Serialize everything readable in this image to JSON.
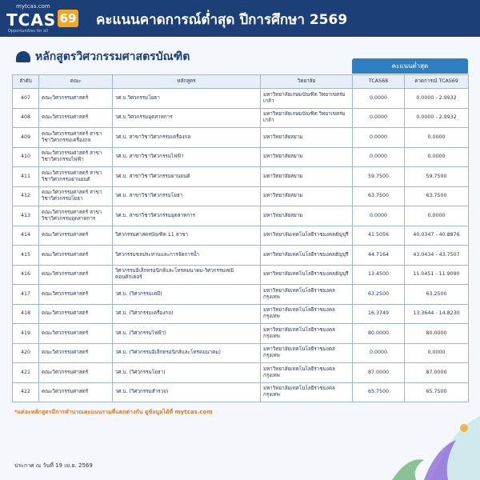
{
  "header": {
    "logo_site": "mytcas.com",
    "logo_text": "TCAS",
    "logo_number": "69",
    "logo_tagline": "Opportunities for all",
    "title": "คะแนนคาดการณ์ต่ำสุด ปีการศึกษา 2569"
  },
  "section_title": "หลักสูตรวิศวกรรมศาสตรบัณฑิต",
  "table": {
    "group_header": "คะแนนต่ำสุด",
    "columns": [
      "ลำดับ",
      "คณะ",
      "หลักสูตร",
      "วิทยาลัย",
      "TCAS68",
      "คาดการณ์ TCAS69"
    ],
    "rows": [
      [
        407,
        "คณะวิศวกรรมศาสตร์",
        "วศ.บ.วิศวกรรมโยธา",
        "มหาวิทยาลัยเกษมบัณฑิต วิทยาเขตร่มเกล้า",
        "0.0000",
        "0.0000 - 2.9932"
      ],
      [
        408,
        "คณะวิศวกรรมศาสตร์",
        "วศ.บ.วิศวกรรมอุตสาหการ",
        "มหาวิทยาลัยเกษมบัณฑิต วิทยาเขตร่มเกล้า",
        "0.0000",
        "0.0000 - 2.9932"
      ],
      [
        409,
        "คณะวิศวกรรมศาสตร์ สาขาวิชาวิศวกรรมเครื่องกล",
        "วศ.บ. สาขาวิชาวิศวกรรมเครื่องกล",
        "มหาวิทยาลัยสยาม",
        "0.0000",
        "0.0000"
      ],
      [
        410,
        "คณะวิศวกรรมศาสตร์ สาขาวิชาวิศวกรรมไฟฟ้า",
        "วศ.บ. สาขาวิชาวิศวกรรมไฟฟ้า",
        "มหาวิทยาลัยสยาม",
        "0.0000",
        "0.0000"
      ],
      [
        411,
        "คณะวิศวกรรมศาสตร์ สาขาวิชาวิศวกรรมยานยนต์",
        "วศ.บ. สาขาวิชาวิศวกรรมยานยนต์",
        "มหาวิทยาลัยสยาม",
        "59.7500",
        "59.7500"
      ],
      [
        412,
        "คณะวิศวกรรมศาสตร์ สาขาวิชาวิศวกรรมโยธา",
        "วศ.บ. สาขาวิชาวิศวกรรมโยธา",
        "มหาวิทยาลัยสยาม",
        "63.7500",
        "63.7500"
      ],
      [
        413,
        "คณะวิศวกรรมศาสตร์ สาขาวิชาวิศวกรรมอุตสาหการ",
        "วศ.บ. สาขาวิชาวิศวกรรมอุตสาหการ",
        "มหาวิทยาลัยสยาม",
        "0.0000",
        "0.0000"
      ],
      [
        414,
        "คณะวิศวกรรมศาสตร์",
        "วิศวกรรมศาสตรบัณฑิต 11 สาขา",
        "มหาวิทยาลัยเทคโนโลยีราชมงคลธัญบุรี",
        "41.5056",
        "40.0347 - 40.8876"
      ],
      [
        415,
        "คณะวิศวกรรมศาสตร์",
        "วิศวกรรมชลประทานและการจัดการน้ำ",
        "มหาวิทยาลัยเทคโนโลยีราชมงคลธัญบุรี",
        "44.7164",
        "43.0434 - 43.7507"
      ],
      [
        416,
        "คณะวิศวกรรมศาสตร์",
        "วิศวกรรมอิเล็กทรอนิกส์และโทรคมนาคม-วิศวกรรมเซมิคอนดักเตอร์",
        "มหาวิทยาลัยเทคโนโลยีราชมงคลธัญบุรี",
        "13.4500",
        "11.0451 - 11.9090"
      ],
      [
        417,
        "คณะวิศวกรรมศาสตร์",
        "วศ.บ. (วิศวกรรมเคมี)",
        "มหาวิทยาลัยเทคโนโลยีราชมงคลกรุงเทพ",
        "63.2500",
        "63.2500"
      ],
      [
        418,
        "คณะวิศวกรรมศาสตร์",
        "วศ.บ. (วิศวกรรมเครื่องกล)",
        "มหาวิทยาลัยเทคโนโลยีราชมงคลกรุงเทพ",
        "16.3749",
        "13.3644 - 14.8230"
      ],
      [
        419,
        "คณะวิศวกรรมศาสตร์",
        "วศ.บ. (วิศวกรรมไฟฟ้า)",
        "มหาวิทยาลัยเทคโนโลยีราชมงคลกรุงเทพ",
        "80.0000",
        "80.0000"
      ],
      [
        420,
        "คณะวิศวกรรมศาสตร์",
        "วศ.บ. (วิศวกรรมอิเล็กทรอนิกส์และโทรคมนาคม)",
        "มหาวิทยาลัยเทคโนโลยีราชมงคลกรุงเทพ",
        "0.0000",
        "0.0000"
      ],
      [
        421,
        "คณะวิศวกรรมศาสตร์",
        "วศ.บ. (วิศวกรรมโยธา)",
        "มหาวิทยาลัยเทคโนโลยีราชมงคลกรุงเทพ",
        "87.0000",
        "87.0000"
      ],
      [
        422,
        "คณะวิศวกรรมศาสตร์",
        "วศ.บ. (วิศวกรรมสำรวจ)",
        "มหาวิทยาลัยเทคโนโลยีราชมงคลกรุงเทพ",
        "65.7500",
        "65.7500"
      ]
    ]
  },
  "footnote": "*แต่ละหลักสูตรมีการคำนวณคะแนนรวมที่แตกต่างกัน ดูข้อมูลได้ที่ mytcas.com",
  "announce_date": "ประกาศ ณ วันที่ 19 เม.ย. 2569"
}
